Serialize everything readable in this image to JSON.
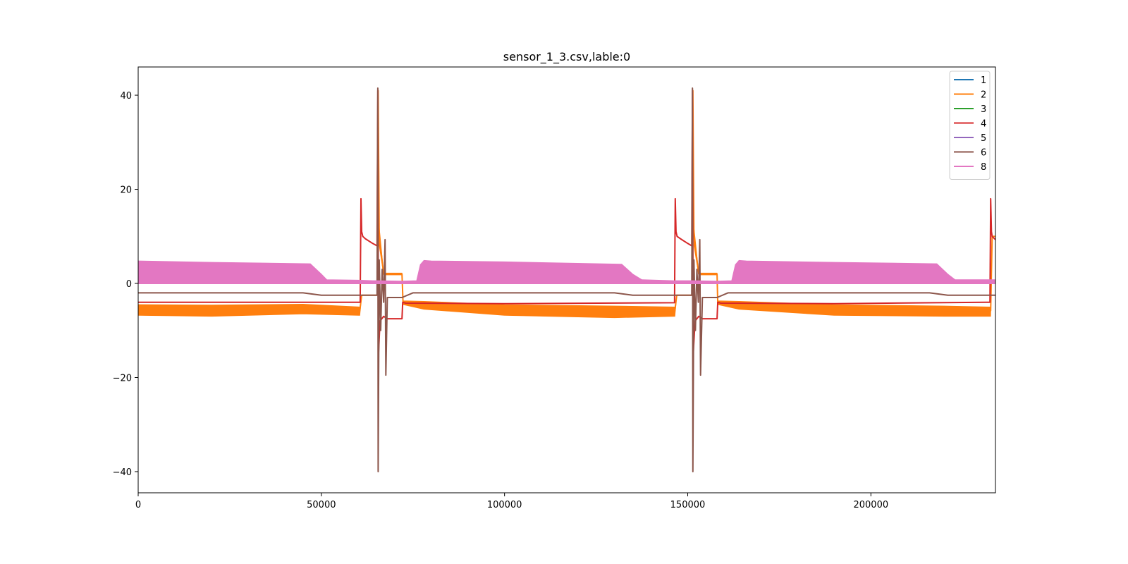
{
  "chart_data": {
    "type": "line",
    "title": "sensor_1_3.csv,lable:0",
    "xlabel": "",
    "ylabel": "",
    "xlim": [
      0,
      234000
    ],
    "ylim": [
      -44.5,
      46
    ],
    "xticks": [
      0,
      50000,
      100000,
      150000,
      200000
    ],
    "xtick_labels": [
      "0",
      "50000",
      "100000",
      "150000",
      "200000"
    ],
    "yticks": [
      -40,
      -20,
      0,
      20,
      40
    ],
    "ytick_labels": [
      "−40",
      "−20",
      "0",
      "20",
      "40"
    ],
    "grid": false,
    "legend_position": "top-right",
    "series": [
      {
        "name": "1",
        "color": "#1f77b4",
        "band": false,
        "x": [
          0,
          234000
        ],
        "y": [
          0,
          0
        ]
      },
      {
        "name": "2",
        "color": "#ff7f0e",
        "band": true,
        "x": [
          0,
          20000,
          45000,
          60500,
          61000,
          64000,
          65300,
          65500,
          65800,
          67000,
          72000,
          72300,
          78000,
          100000,
          130000,
          146500,
          147000,
          150000,
          151200,
          151400,
          151700,
          153000,
          158000,
          158200,
          164000,
          190000,
          220000,
          232700,
          233100,
          234000
        ],
        "y": [
          -5.5,
          -5.6,
          -5.4,
          -5.8,
          -2.5,
          -2.5,
          -2.5,
          41,
          10,
          2,
          2,
          -4.2,
          -4.5,
          -5.5,
          -5.8,
          -5.8,
          -2.5,
          -2.5,
          -2.5,
          41,
          10,
          2,
          2,
          -4.2,
          -4.5,
          -5.5,
          -5.8,
          -5.8,
          10,
          10
        ],
        "lo": [
          -6.8,
          -7,
          -6.5,
          -6.8,
          -2.5,
          -2.5,
          -2.5,
          41,
          8,
          1.8,
          1.8,
          -4.5,
          -5.5,
          -6.8,
          -7.3,
          -7,
          -2.5,
          -2.5,
          -2.5,
          41,
          8,
          1.8,
          1.8,
          -4.5,
          -5.5,
          -6.8,
          -7,
          -7,
          10,
          10
        ],
        "hi": [
          -4.5,
          -4.6,
          -4.4,
          -5,
          -2.5,
          -2.5,
          -2.5,
          41,
          12,
          2.2,
          2.2,
          -3.7,
          -3.8,
          -4.5,
          -4.8,
          -5,
          -2.5,
          -2.5,
          -2.5,
          41,
          12,
          2.2,
          2.2,
          -3.7,
          -3.8,
          -4.5,
          -4.8,
          -5,
          10,
          10
        ]
      },
      {
        "name": "3",
        "color": "#2ca02c",
        "band": false,
        "x": [
          0,
          234000
        ],
        "y": [
          0.1,
          0.1
        ]
      },
      {
        "name": "4",
        "color": "#d62728",
        "band": false,
        "x": [
          0,
          60600,
          60800,
          61000,
          61300,
          62000,
          64000,
          65200,
          65400,
          65600,
          66000,
          67000,
          68000,
          72000,
          72200,
          73000,
          100000,
          146400,
          146600,
          146800,
          147100,
          148000,
          150000,
          151100,
          151300,
          151500,
          152000,
          153000,
          154000,
          158000,
          158200,
          159000,
          190000,
          232500,
          232700,
          232900,
          233100,
          234000
        ],
        "y": [
          -4,
          -4,
          18,
          11,
          10,
          9.5,
          8.5,
          8,
          41,
          -15,
          -8,
          -7,
          -7.5,
          -7.5,
          -4,
          -4.2,
          -4.3,
          -4.1,
          18,
          11,
          10,
          9.5,
          8.5,
          8,
          41,
          -15,
          -8,
          -7,
          -7.5,
          -7.5,
          -4,
          -4.2,
          -4.3,
          -4,
          18,
          11,
          10,
          9.3
        ]
      },
      {
        "name": "5",
        "color": "#9467bd",
        "band": false,
        "x": [
          0,
          234000
        ],
        "y": [
          0,
          0
        ]
      },
      {
        "name": "6",
        "color": "#8c564b",
        "band": false,
        "x": [
          0,
          45000,
          50000,
          60000,
          61000,
          64000,
          65200,
          65400,
          65500,
          65800,
          66200,
          66600,
          67000,
          67400,
          67600,
          68000,
          69000,
          72000,
          75000,
          78000,
          100000,
          130000,
          135000,
          146000,
          147000,
          150000,
          151100,
          151300,
          151400,
          151700,
          152100,
          152500,
          152900,
          153300,
          153500,
          154000,
          155000,
          158000,
          161000,
          164000,
          190000,
          216000,
          221000,
          232000,
          234000
        ],
        "y": [
          -2,
          -2,
          -2.5,
          -2.5,
          -2.5,
          -2.5,
          -2.5,
          41.5,
          -40,
          5,
          -10,
          3,
          -4,
          9.3,
          -19.5,
          -3,
          -3,
          -3,
          -2,
          -2,
          -2,
          -2,
          -2.5,
          -2.5,
          -2.5,
          -2.5,
          -2.5,
          41.5,
          -40,
          5,
          -10,
          3,
          -4,
          9.3,
          -19.5,
          -3,
          -3,
          -3,
          -2,
          -2,
          -2,
          -2,
          -2.5,
          -2.5,
          -2.5
        ]
      },
      {
        "name": "8",
        "color": "#e377c2",
        "band": true,
        "x": [
          0,
          20000,
          47000,
          50000,
          51500,
          60000,
          64000,
          65000,
          72000,
          76000,
          77000,
          78000,
          80000,
          100000,
          132000,
          135000,
          137500,
          146000,
          150000,
          151000,
          158000,
          162000,
          163000,
          164000,
          166000,
          190000,
          218000,
          221000,
          223000,
          234000
        ],
        "y": [
          0,
          0,
          0,
          0,
          0,
          0,
          0,
          0,
          0,
          0,
          0,
          0,
          0,
          0,
          0,
          0,
          0,
          0,
          0,
          0,
          0,
          0,
          0,
          0,
          0,
          0,
          0,
          0,
          0,
          0
        ],
        "lo": [
          0,
          0,
          0,
          0,
          0,
          0,
          0,
          0,
          0,
          0,
          0,
          0,
          0,
          0,
          0,
          0,
          0,
          0,
          0,
          0,
          0,
          0,
          0,
          0,
          0,
          0,
          0,
          0,
          0,
          0
        ],
        "hi": [
          4.8,
          4.5,
          4.2,
          2,
          0.8,
          0.7,
          0.6,
          0.6,
          0.5,
          0.6,
          4,
          4.9,
          4.8,
          4.6,
          4.1,
          2,
          0.8,
          0.6,
          0.6,
          0.6,
          0.5,
          0.6,
          4,
          4.9,
          4.8,
          4.5,
          4.2,
          2,
          0.8,
          0.8
        ]
      }
    ]
  }
}
